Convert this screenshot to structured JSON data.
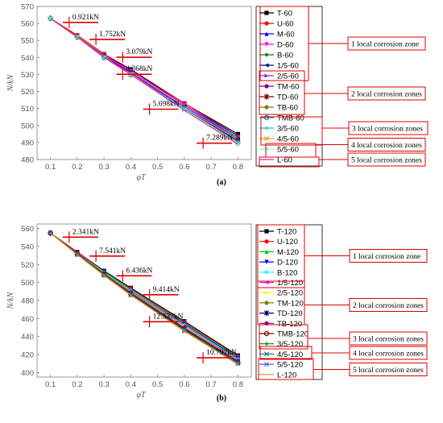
{
  "chart_data": [
    {
      "panel": "(a)",
      "type": "line",
      "xlabel": "φT",
      "ylabel": "N/kN",
      "xlim": [
        0.05,
        0.85
      ],
      "ylim": [
        480,
        570
      ],
      "xticks": [
        "0.1",
        "0.2",
        "0.3",
        "0.4",
        "0.5",
        "0.6",
        "0.7",
        "0.8"
      ],
      "yticks": [
        "480",
        "490",
        "500",
        "510",
        "520",
        "530",
        "540",
        "550",
        "560",
        "570"
      ],
      "x": [
        0.1,
        0.2,
        0.3,
        0.4,
        0.6,
        0.8
      ],
      "series": [
        {
          "name": "T-60",
          "color": "#000000",
          "marker": "square",
          "values": [
            563,
            553,
            542,
            533,
            513,
            495
          ]
        },
        {
          "name": "U-60",
          "color": "#ff0000",
          "marker": "circle",
          "values": [
            563,
            553,
            542,
            532,
            513,
            494
          ]
        },
        {
          "name": "M-60",
          "color": "#0000ff",
          "marker": "triangle-up",
          "values": [
            563,
            552,
            541,
            532,
            512,
            494
          ]
        },
        {
          "name": "D-60",
          "color": "#ff00ff",
          "marker": "triangle-down",
          "values": [
            563,
            552,
            541,
            532,
            512,
            493
          ]
        },
        {
          "name": "B-60",
          "color": "#008000",
          "marker": "diamond",
          "values": [
            563,
            552,
            541,
            531,
            511,
            493
          ]
        },
        {
          "name": "1/5-60",
          "color": "#000080",
          "marker": "triangle-left",
          "values": [
            563,
            552,
            541,
            531,
            511,
            492
          ]
        },
        {
          "name": "2/5-60",
          "color": "#8a2be2",
          "marker": "triangle-right",
          "values": [
            563,
            552,
            541,
            531,
            511,
            492
          ]
        },
        {
          "name": "TM-60",
          "color": "#800080",
          "marker": "hexagon",
          "values": [
            563,
            552,
            540,
            531,
            510,
            491
          ]
        },
        {
          "name": "TD-60",
          "color": "#800000",
          "marker": "star",
          "values": [
            563,
            552,
            540,
            530,
            510,
            491
          ]
        },
        {
          "name": "TB-60",
          "color": "#808000",
          "marker": "pentagon",
          "values": [
            563,
            552,
            540,
            530,
            510,
            490
          ]
        },
        {
          "name": "TMB-60",
          "color": "#1f77b4",
          "marker": "circle-open",
          "values": [
            563,
            552,
            540,
            530,
            510,
            490
          ]
        },
        {
          "name": "3/5-60",
          "color": "#00ced1",
          "marker": "plus",
          "values": [
            563,
            552,
            540,
            530,
            510,
            490
          ]
        },
        {
          "name": "4/5-60",
          "color": "#daa520",
          "marker": "x",
          "values": [
            563,
            552,
            540,
            530,
            509,
            489
          ]
        },
        {
          "name": "5/5-60",
          "color": "#7fffd4",
          "marker": "x",
          "values": [
            563,
            552,
            540,
            530,
            509,
            489
          ]
        },
        {
          "name": "L-60",
          "color": "#ff1493",
          "marker": "none",
          "values": [
            563,
            552,
            540,
            530,
            509,
            489
          ]
        }
      ],
      "annotations": [
        {
          "text": "0.921kN",
          "x": 0.2,
          "y": 562.5
        },
        {
          "text": "1.752kN",
          "x": 0.3,
          "y": 552.5
        },
        {
          "text": "3.079kN",
          "x": 0.4,
          "y": 542
        },
        {
          "text": "4.368kN",
          "x": 0.4,
          "y": 532
        },
        {
          "text": "5.698kN",
          "x": 0.5,
          "y": 511.5
        },
        {
          "text": "7.289kN",
          "x": 0.7,
          "y": 491.5
        }
      ],
      "zones": [
        {
          "text": "1 local corrosion zone"
        },
        {
          "text": "2 local corrosion zones"
        },
        {
          "text": "3 local corrosion zones"
        },
        {
          "text": "4 local corrosion zones"
        },
        {
          "text": "5 local corrosion zones"
        }
      ]
    },
    {
      "panel": "(b)",
      "type": "line",
      "xlabel": "φT",
      "ylabel": "N/kN",
      "xlim": [
        0.05,
        0.85
      ],
      "ylim": [
        395,
        565
      ],
      "xticks": [
        "0.1",
        "0.2",
        "0.3",
        "0.4",
        "0.5",
        "0.6",
        "0.7",
        "0.8"
      ],
      "yticks": [
        "400",
        "420",
        "440",
        "460",
        "480",
        "500",
        "520",
        "540",
        "560"
      ],
      "x": [
        0.1,
        0.2,
        0.3,
        0.4,
        0.6,
        0.8
      ],
      "series": [
        {
          "name": "T-120",
          "color": "#000000",
          "marker": "square",
          "values": [
            555,
            534,
            513,
            494,
            457,
            419
          ]
        },
        {
          "name": "U-120",
          "color": "#ff0000",
          "marker": "circle",
          "values": [
            555,
            534,
            512,
            493,
            456,
            418
          ]
        },
        {
          "name": "M-120",
          "color": "#00cc00",
          "marker": "triangle-up",
          "values": [
            555,
            533,
            512,
            492,
            455,
            417
          ]
        },
        {
          "name": "D-120",
          "color": "#0000ff",
          "marker": "triangle-down",
          "values": [
            555,
            533,
            511,
            491,
            454,
            416
          ]
        },
        {
          "name": "B-120",
          "color": "#00ffff",
          "marker": "diamond",
          "values": [
            555,
            533,
            511,
            491,
            453,
            415
          ]
        },
        {
          "name": "1/5-120",
          "color": "#ff00ff",
          "marker": "triangle-left",
          "values": [
            555,
            533,
            510,
            490,
            452,
            414
          ]
        },
        {
          "name": "2/5-120",
          "color": "#ffff00",
          "marker": "triangle-right",
          "values": [
            555,
            532,
            510,
            489,
            451,
            413
          ]
        },
        {
          "name": "TM-120",
          "color": "#808000",
          "marker": "hexagon",
          "values": [
            555,
            532,
            510,
            489,
            450,
            413
          ]
        },
        {
          "name": "TD-120",
          "color": "#000080",
          "marker": "star",
          "values": [
            555,
            532,
            509,
            488,
            449,
            412
          ]
        },
        {
          "name": "TB-120",
          "color": "#800080",
          "marker": "pentagon",
          "values": [
            555,
            532,
            509,
            488,
            449,
            412
          ]
        },
        {
          "name": "TMB-120",
          "color": "#800000",
          "marker": "circle-open",
          "values": [
            555,
            532,
            509,
            487,
            448,
            411
          ]
        },
        {
          "name": "3/5-120",
          "color": "#008000",
          "marker": "plus",
          "values": [
            555,
            532,
            508,
            487,
            447,
            411
          ]
        },
        {
          "name": "4/5-120",
          "color": "#008b8b",
          "marker": "x",
          "values": [
            555,
            531,
            508,
            486,
            447,
            410
          ]
        },
        {
          "name": "5/5-120",
          "color": "#4169e1",
          "marker": "x",
          "values": [
            555,
            531,
            508,
            486,
            446,
            410
          ]
        },
        {
          "name": "L-120",
          "color": "#ff8c00",
          "marker": "none",
          "values": [
            555,
            531,
            508,
            486,
            446,
            409
          ]
        }
      ],
      "annotations": [
        {
          "text": "2.341kN",
          "x": 0.2,
          "y": 554
        },
        {
          "text": "7.541kN",
          "x": 0.3,
          "y": 533
        },
        {
          "text": "6.436kN",
          "x": 0.4,
          "y": 511
        },
        {
          "text": "9.414kN",
          "x": 0.5,
          "y": 490
        },
        {
          "text": "12.337kN",
          "x": 0.5,
          "y": 460
        },
        {
          "text": "10.797kN",
          "x": 0.7,
          "y": 420
        }
      ],
      "zones": [
        {
          "text": "1 local corrosion zone"
        },
        {
          "text": "2 local corrosion zones"
        },
        {
          "text": "3 local corrosion zones"
        },
        {
          "text": "4 local corrosion zones"
        },
        {
          "text": "5 local corrosion zones"
        }
      ]
    }
  ]
}
